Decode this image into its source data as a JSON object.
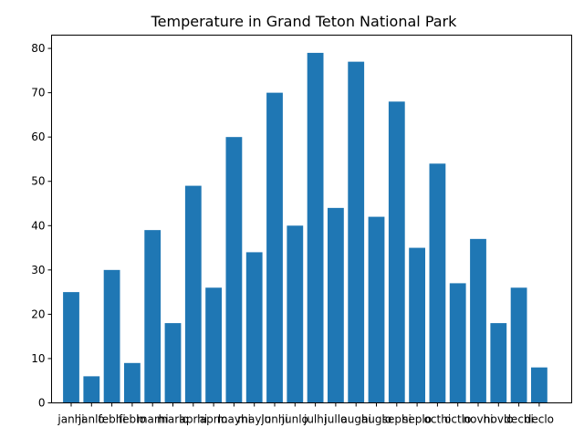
{
  "chart_data": {
    "type": "bar",
    "title": "Temperature in Grand Teton National Park",
    "xlabel": "",
    "ylabel": "",
    "categories": [
      "janhi",
      "janlo",
      "febhi",
      "feblo",
      "marhi",
      "marlo",
      "aprhi",
      "aprlo",
      "mayhi",
      "maylo",
      "junhi",
      "junlo",
      "julhi",
      "jullo",
      "aughi",
      "auglo",
      "sephi",
      "seplo",
      "octhi",
      "octlo",
      "novhi",
      "novlo",
      "dechi",
      "declo"
    ],
    "values": [
      25,
      6,
      30,
      9,
      39,
      18,
      49,
      26,
      60,
      34,
      70,
      40,
      79,
      44,
      77,
      42,
      68,
      35,
      54,
      27,
      37,
      18,
      26,
      8
    ],
    "ylim": [
      0,
      83
    ],
    "yticks": [
      0,
      10,
      20,
      30,
      40,
      50,
      60,
      70,
      80
    ],
    "bar_color": "#1f77b4",
    "grid": false,
    "legend": "none"
  }
}
